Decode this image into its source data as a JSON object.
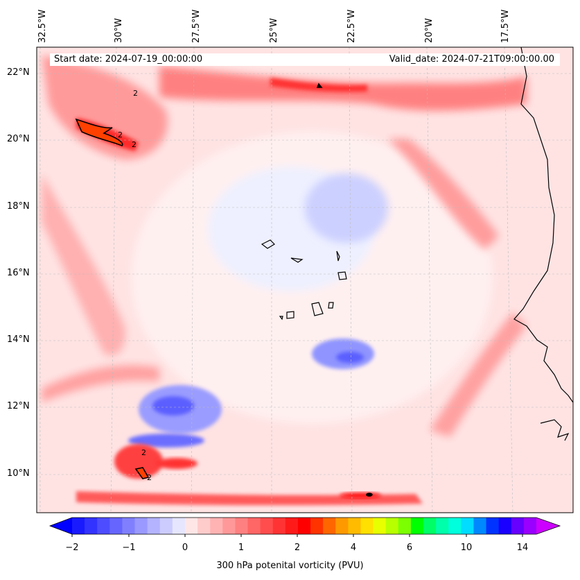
{
  "header": {
    "start_label": "Start date: 2024-07-19_00:00:00",
    "valid_label": "Valid_date: 2024-07-21T09:00:00.00"
  },
  "axes": {
    "lon_labels": [
      "32.5°W",
      "30°W",
      "27.5°W",
      "25°W",
      "22.5°W",
      "20°W",
      "17.5°W"
    ],
    "lat_labels": [
      "22°N",
      "20°N",
      "18°N",
      "16°N",
      "14°N",
      "12°N",
      "10°N"
    ]
  },
  "colorbar": {
    "title": "300 hPa potenital vorticity (PVU)",
    "ticks": [
      "−2",
      "−1",
      "0",
      "1",
      "2",
      "4",
      "6",
      "10",
      "14"
    ],
    "colors": [
      "#1a1aff",
      "#3333ff",
      "#4d4dff",
      "#6666ff",
      "#8080ff",
      "#9999ff",
      "#b3b3ff",
      "#ccccff",
      "#e6e6ff",
      "#ffe6e6",
      "#ffcccc",
      "#ffb3b3",
      "#ff9999",
      "#ff8080",
      "#ff6666",
      "#ff4d4d",
      "#ff3333",
      "#ff1a1a",
      "#ff0000",
      "#ff3300",
      "#ff6600",
      "#ff9900",
      "#ffbb00",
      "#ffe000",
      "#e8ff00",
      "#b8ff00",
      "#7cff00",
      "#00ff00",
      "#00ff66",
      "#00ffaa",
      "#00ffdd",
      "#00ddff",
      "#0088ff",
      "#0033ff",
      "#1a00ff",
      "#6600ff",
      "#9900ff"
    ],
    "under_color": "#0000ff",
    "over_color": "#cc00ff"
  },
  "map": {
    "background": "#ffe0e0",
    "contour_level": "2"
  }
}
